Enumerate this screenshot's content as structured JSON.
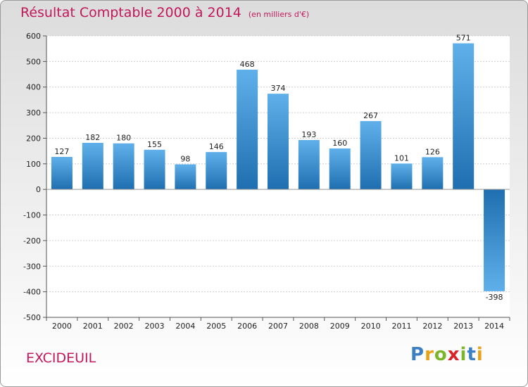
{
  "chart_data": {
    "type": "bar",
    "title": "Résultat Comptable 2000 à 2014",
    "subtitle": "(en milliers d'€)",
    "categories": [
      "2000",
      "2001",
      "2002",
      "2003",
      "2004",
      "2005",
      "2006",
      "2007",
      "2008",
      "2009",
      "2010",
      "2011",
      "2012",
      "2013",
      "2014"
    ],
    "values": [
      127,
      182,
      180,
      155,
      98,
      146,
      468,
      374,
      193,
      160,
      267,
      101,
      126,
      571,
      -398
    ],
    "value_labels": [
      "127",
      "182",
      "180",
      "155",
      "98",
      "146",
      "468",
      "374",
      "193",
      "160",
      "267",
      "101",
      "126",
      "571",
      "-398"
    ],
    "yticks": [
      "600",
      "500",
      "400",
      "300",
      "200",
      "100",
      "0",
      "-100",
      "-200",
      "-300",
      "-400",
      "-500"
    ],
    "ylim": [
      -500,
      600
    ],
    "xlabel": "",
    "ylabel": "",
    "grid": true
  },
  "footer": {
    "commune": "EXCIDEUIL"
  },
  "logo": {
    "letters": [
      "P",
      "r",
      "o",
      "x",
      "i",
      "t",
      "i"
    ],
    "colors": [
      "#3b7fc4",
      "#e8a218",
      "#7bb52a",
      "#d9242a",
      "#7bb52a",
      "#3b7fc4",
      "#e8a218"
    ]
  },
  "colors": {
    "bar_light": "#5fb0ea",
    "bar_dark": "#1f6fb0",
    "title": "#c0185b"
  }
}
